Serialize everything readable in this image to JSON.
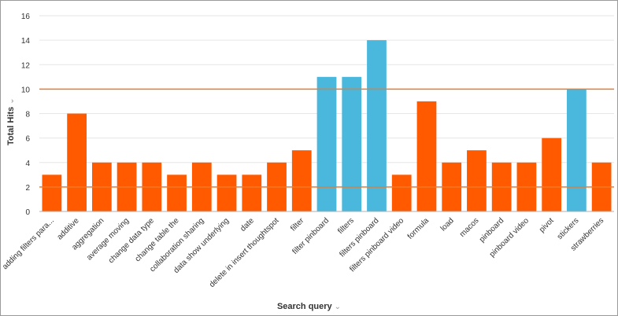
{
  "chart_data": {
    "type": "bar",
    "xlabel": "Search query",
    "ylabel": "Total Hits",
    "ylim": [
      0,
      16
    ],
    "yticks": [
      0,
      2,
      4,
      6,
      8,
      10,
      12,
      14,
      16
    ],
    "grid": true,
    "categories": [
      "adding filters para...",
      "additive",
      "aggregation",
      "average moving",
      "change data type",
      "change table the",
      "collaboration sharing",
      "data show underlying",
      "date",
      "delete in insert thoughtspot",
      "filter",
      "filter pinboard",
      "filters",
      "filters pinboard",
      "filters pinboard video",
      "formula",
      "load",
      "macos",
      "pinboard",
      "pinboard video",
      "pivot",
      "stickers",
      "strawberries"
    ],
    "values": [
      3,
      8,
      4,
      4,
      4,
      3,
      4,
      3,
      3,
      4,
      5,
      11,
      11,
      14,
      3,
      9,
      4,
      5,
      4,
      4,
      6,
      10,
      4
    ],
    "highlighted": [
      false,
      false,
      false,
      false,
      false,
      false,
      false,
      false,
      false,
      false,
      false,
      true,
      true,
      true,
      false,
      false,
      false,
      false,
      false,
      false,
      false,
      true,
      false
    ],
    "reference_lines": [
      2,
      10
    ],
    "colors": {
      "bar": "#ff5a00",
      "highlight": "#4ab7dc",
      "reference_line": "#f07a2a",
      "grid": "#e6e6e6",
      "axis": "#b0b0b0",
      "text": "#333333"
    }
  }
}
